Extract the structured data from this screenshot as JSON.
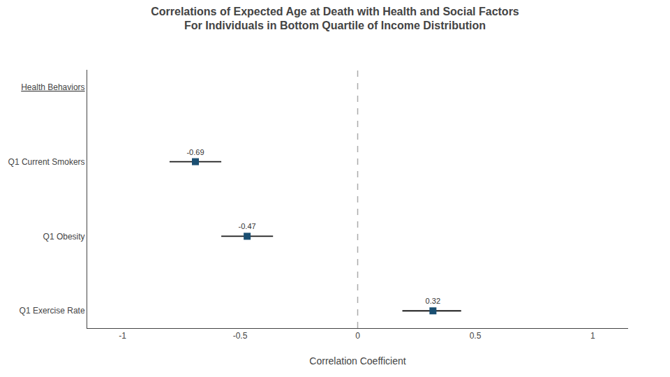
{
  "chart_data": {
    "type": "dot",
    "title": "Correlations of Expected Age at Death with Health and Social Factors",
    "subtitle": "For Individuals in Bottom Quartile of Income Distribution",
    "x_label": "Correlation Coefficient",
    "orientation": "horizontal",
    "categories": [
      "Health Behaviors",
      "Q1 Current Smokers",
      "Q1 Obesity",
      "Q1 Exercise Rate"
    ],
    "values": [
      null,
      -0.69,
      -0.47,
      0.32
    ],
    "ci_low": [
      null,
      -0.8,
      -0.58,
      0.19
    ],
    "ci_high": [
      null,
      -0.58,
      -0.36,
      0.44
    ],
    "color": "#1a4f72",
    "marker": "square",
    "data_labels": true,
    "xlim": [
      -1.15,
      1.15
    ],
    "xticks": [
      -1,
      -0.5,
      0,
      0.5,
      1
    ],
    "grid": false,
    "reference_line": {
      "x": 0,
      "line_style": "dashed"
    }
  }
}
